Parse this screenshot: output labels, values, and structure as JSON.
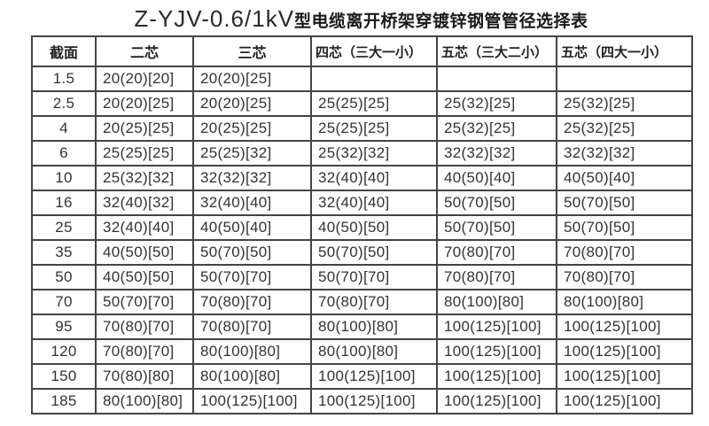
{
  "title": {
    "latin": "Z-YJV-0.6/1kV",
    "cjk": "型电缆离开桥架穿镀锌钢管管径选择表"
  },
  "table": {
    "headers": [
      "截面",
      "二芯",
      "三芯",
      "四芯（三大一小）",
      "五芯（三大二小）",
      "五芯（四大一小）"
    ],
    "rows": [
      [
        "1.5",
        "20(20)[20]",
        "20(20)[25]",
        "",
        "",
        ""
      ],
      [
        "2.5",
        "20(20)[25]",
        "20(20)[25]",
        "25(25)[25]",
        "25(32)[25]",
        "25(32)[25]"
      ],
      [
        "4",
        "20(25)[25]",
        "20(25)[25]",
        "25(25)[25]",
        "25(32)[25]",
        "25(32)[25]"
      ],
      [
        "6",
        "25(25)[25]",
        "25(25)[32]",
        "25(32)[32]",
        "32(32)[32]",
        "32(32)[32]"
      ],
      [
        "10",
        "25(32)[32]",
        "32(32)[32]",
        "32(40)[40]",
        "40(50)[40]",
        "40(50)[40]"
      ],
      [
        "16",
        "32(40)[32]",
        "32(40)[40]",
        "32(40)[40]",
        "50(70)[50]",
        "50(70)[50]"
      ],
      [
        "25",
        "32(40)[40]",
        "40(50)[40]",
        "40(50)[50]",
        "50(70)[50]",
        "50(70)[50]"
      ],
      [
        "35",
        "40(50)[50]",
        "50(70)[50]",
        "50(70)[50]",
        "70(80)[70]",
        "70(80)[70]"
      ],
      [
        "50",
        "40(50)[50]",
        "50(70)[70]",
        "50(70)[70]",
        "70(80)[70]",
        "70(80)[70]"
      ],
      [
        "70",
        "50(70)[70]",
        "70(80)[70]",
        "70(80)[70]",
        "80(100)[80]",
        "80(100)[80]"
      ],
      [
        "95",
        "70(80)[70]",
        "70(80)[70]",
        "80(100)[80]",
        "100(125)[100]",
        "100(125)[100]"
      ],
      [
        "120",
        "70(80)[70]",
        "80(100)[80]",
        "80(100)[80]",
        "100(125)[100]",
        "100(125)[100]"
      ],
      [
        "150",
        "70(80)[80]",
        "80(100)[80]",
        "100(125)[100]",
        "100(125)[100]",
        "100(125)[100]"
      ],
      [
        "185",
        "80(100)[80]",
        "100(125)[100]",
        "100(125)[100]",
        "100(125)[100]",
        "100(125)[100]"
      ]
    ]
  }
}
